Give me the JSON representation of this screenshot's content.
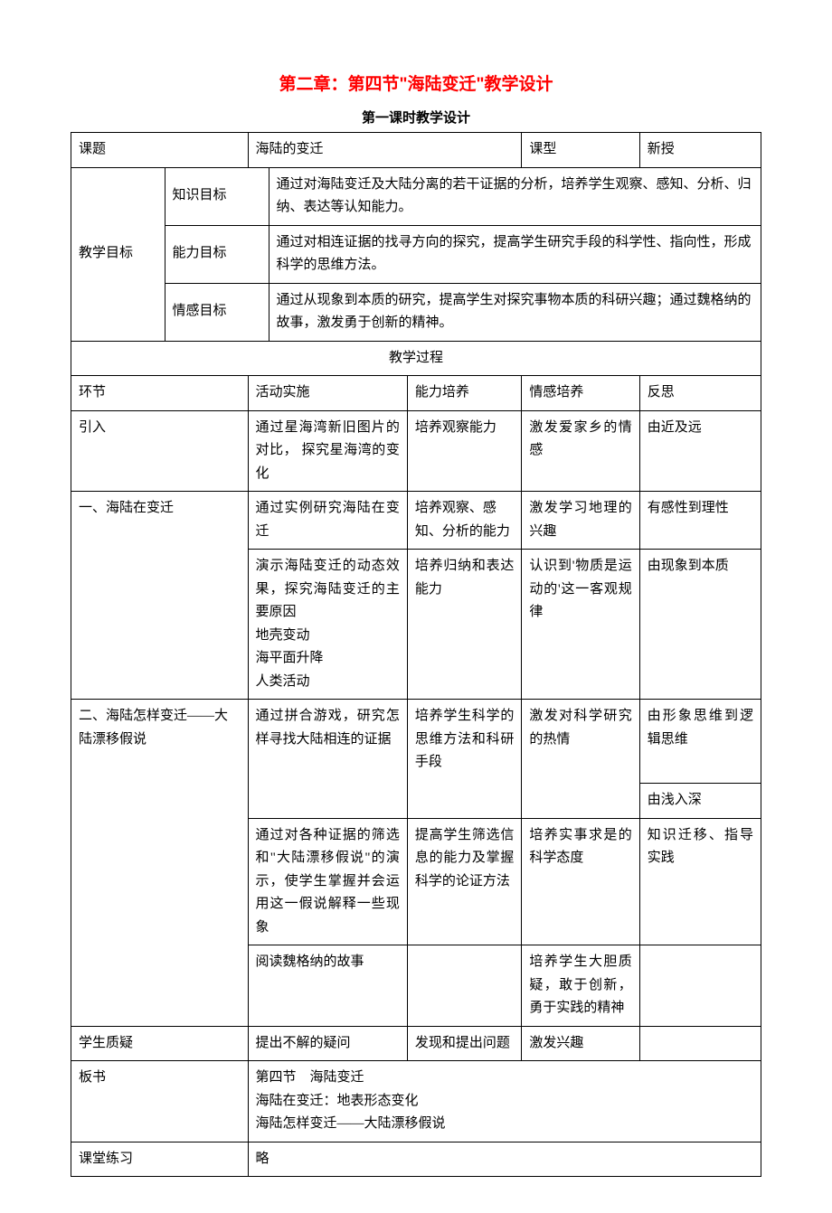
{
  "title": "第二章：第四节\"海陆变迁\"教学设计",
  "subtitle": "第一课时教学设计",
  "header": {
    "topic_label": "课题",
    "topic_value": "海陆的变迁",
    "type_label": "课型",
    "type_value": "新授"
  },
  "objectives": {
    "group_label": "教学目标",
    "knowledge_label": "知识目标",
    "knowledge_text": "通过对海陆变迁及大陆分离的若干证据的分析，培养学生观察、感知、分析、归纳、表达等认知能力。",
    "ability_label": "能力目标",
    "ability_text": "通过对相连证据的找寻方向的探究，提高学生研究手段的科学性、指向性，形成科学的思维方法。",
    "emotion_label": "情感目标",
    "emotion_text": "通过从现象到本质的研究，提高学生对探究事物本质的科研兴趣；通过魏格纳的故事，激发勇于创新的精神。"
  },
  "process_header": "教学过程",
  "columns": {
    "stage": "环节",
    "activity": "活动实施",
    "ability": "能力培养",
    "emotion": "情感培养",
    "reflect": "反思"
  },
  "rows": {
    "intro": {
      "stage": "引入",
      "activity": "通过星海湾新旧图片的对比， 探究星海湾的变化",
      "ability": "培养观察能力",
      "emotion": "激发爱家乡的情感",
      "reflect": "由近及远"
    },
    "section1a": {
      "stage": "一、海陆在变迁",
      "activity": "通过实例研究海陆在变迁",
      "ability": "培养观察、感知、分析的能力",
      "emotion": "激发学习地理的兴趣",
      "reflect": "有感性到理性"
    },
    "section1b": {
      "activity": "演示海陆变迁的动态效果，探究海陆变迁的主要原因\n地壳变动\n海平面升降\n人类活动",
      "ability": "培养归纳和表达能力",
      "emotion": "认识到'物质是运动的'这一客观规律",
      "reflect": "由现象到本质"
    },
    "section2a": {
      "stage": "二、海陆怎样变迁——大陆漂移假说",
      "activity": "通过拼合游戏，研究怎样寻找大陆相连的证据",
      "ability": "培养学生科学的思维方法和科研手段",
      "emotion": "激发对科学研究的热情",
      "reflect": "由形象思维到逻辑思维",
      "reflect2": "由浅入深"
    },
    "section2b": {
      "activity": "通过对各种证据的筛选和\"大陆漂移假说\"的演示，使学生掌握并会运用这一假说解释一些现象",
      "ability": "提高学生筛选信息的能力及掌握科学的论证方法",
      "emotion": "培养实事求是的科学态度",
      "reflect": "知识迁移、指导实践"
    },
    "section2c": {
      "activity": "阅读魏格纳的故事",
      "emotion": "培养学生大胆质疑，敢于创新，勇于实践的精神"
    },
    "question": {
      "stage": "学生质疑",
      "activity": "提出不解的疑问",
      "ability": "发现和提出问题",
      "emotion": "激发兴趣"
    },
    "board": {
      "stage": "板书",
      "text": "第四节　海陆变迁\n海陆在变迁：地表形态变化\n海陆怎样变迁——大陆漂移假说"
    },
    "exercise": {
      "stage": "课堂练习",
      "text": "略"
    }
  }
}
